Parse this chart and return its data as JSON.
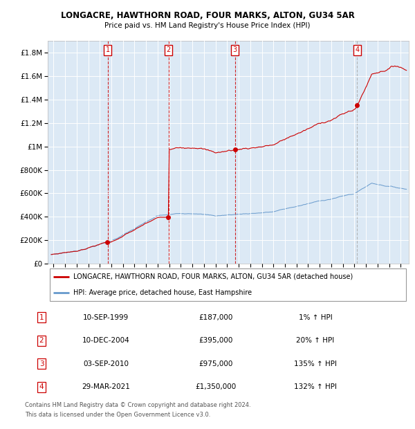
{
  "title": "LONGACRE, HAWTHORN ROAD, FOUR MARKS, ALTON, GU34 5AR",
  "subtitle": "Price paid vs. HM Land Registry's House Price Index (HPI)",
  "red_label": "LONGACRE, HAWTHORN ROAD, FOUR MARKS, ALTON, GU34 5AR (detached house)",
  "blue_label": "HPI: Average price, detached house, East Hampshire",
  "footer1": "Contains HM Land Registry data © Crown copyright and database right 2024.",
  "footer2": "This data is licensed under the Open Government Licence v3.0.",
  "transactions": [
    {
      "num": 1,
      "date": "10-SEP-1999",
      "price": 187000,
      "pct": "1%",
      "dir": "↑"
    },
    {
      "num": 2,
      "date": "10-DEC-2004",
      "price": 395000,
      "pct": "20%",
      "dir": "↑"
    },
    {
      "num": 3,
      "date": "03-SEP-2010",
      "price": 975000,
      "pct": "135%",
      "dir": "↑"
    },
    {
      "num": 4,
      "date": "29-MAR-2021",
      "price": 1350000,
      "pct": "132%",
      "dir": "↑"
    }
  ],
  "transaction_dates_decimal": [
    1999.69,
    2004.94,
    2010.67,
    2021.24
  ],
  "plot_bg": "#dce9f5",
  "grid_color": "#ffffff",
  "red_color": "#cc0000",
  "blue_color": "#6699cc",
  "ylim": [
    0,
    1900000
  ],
  "xlim_start": 1994.5,
  "xlim_end": 2025.7
}
